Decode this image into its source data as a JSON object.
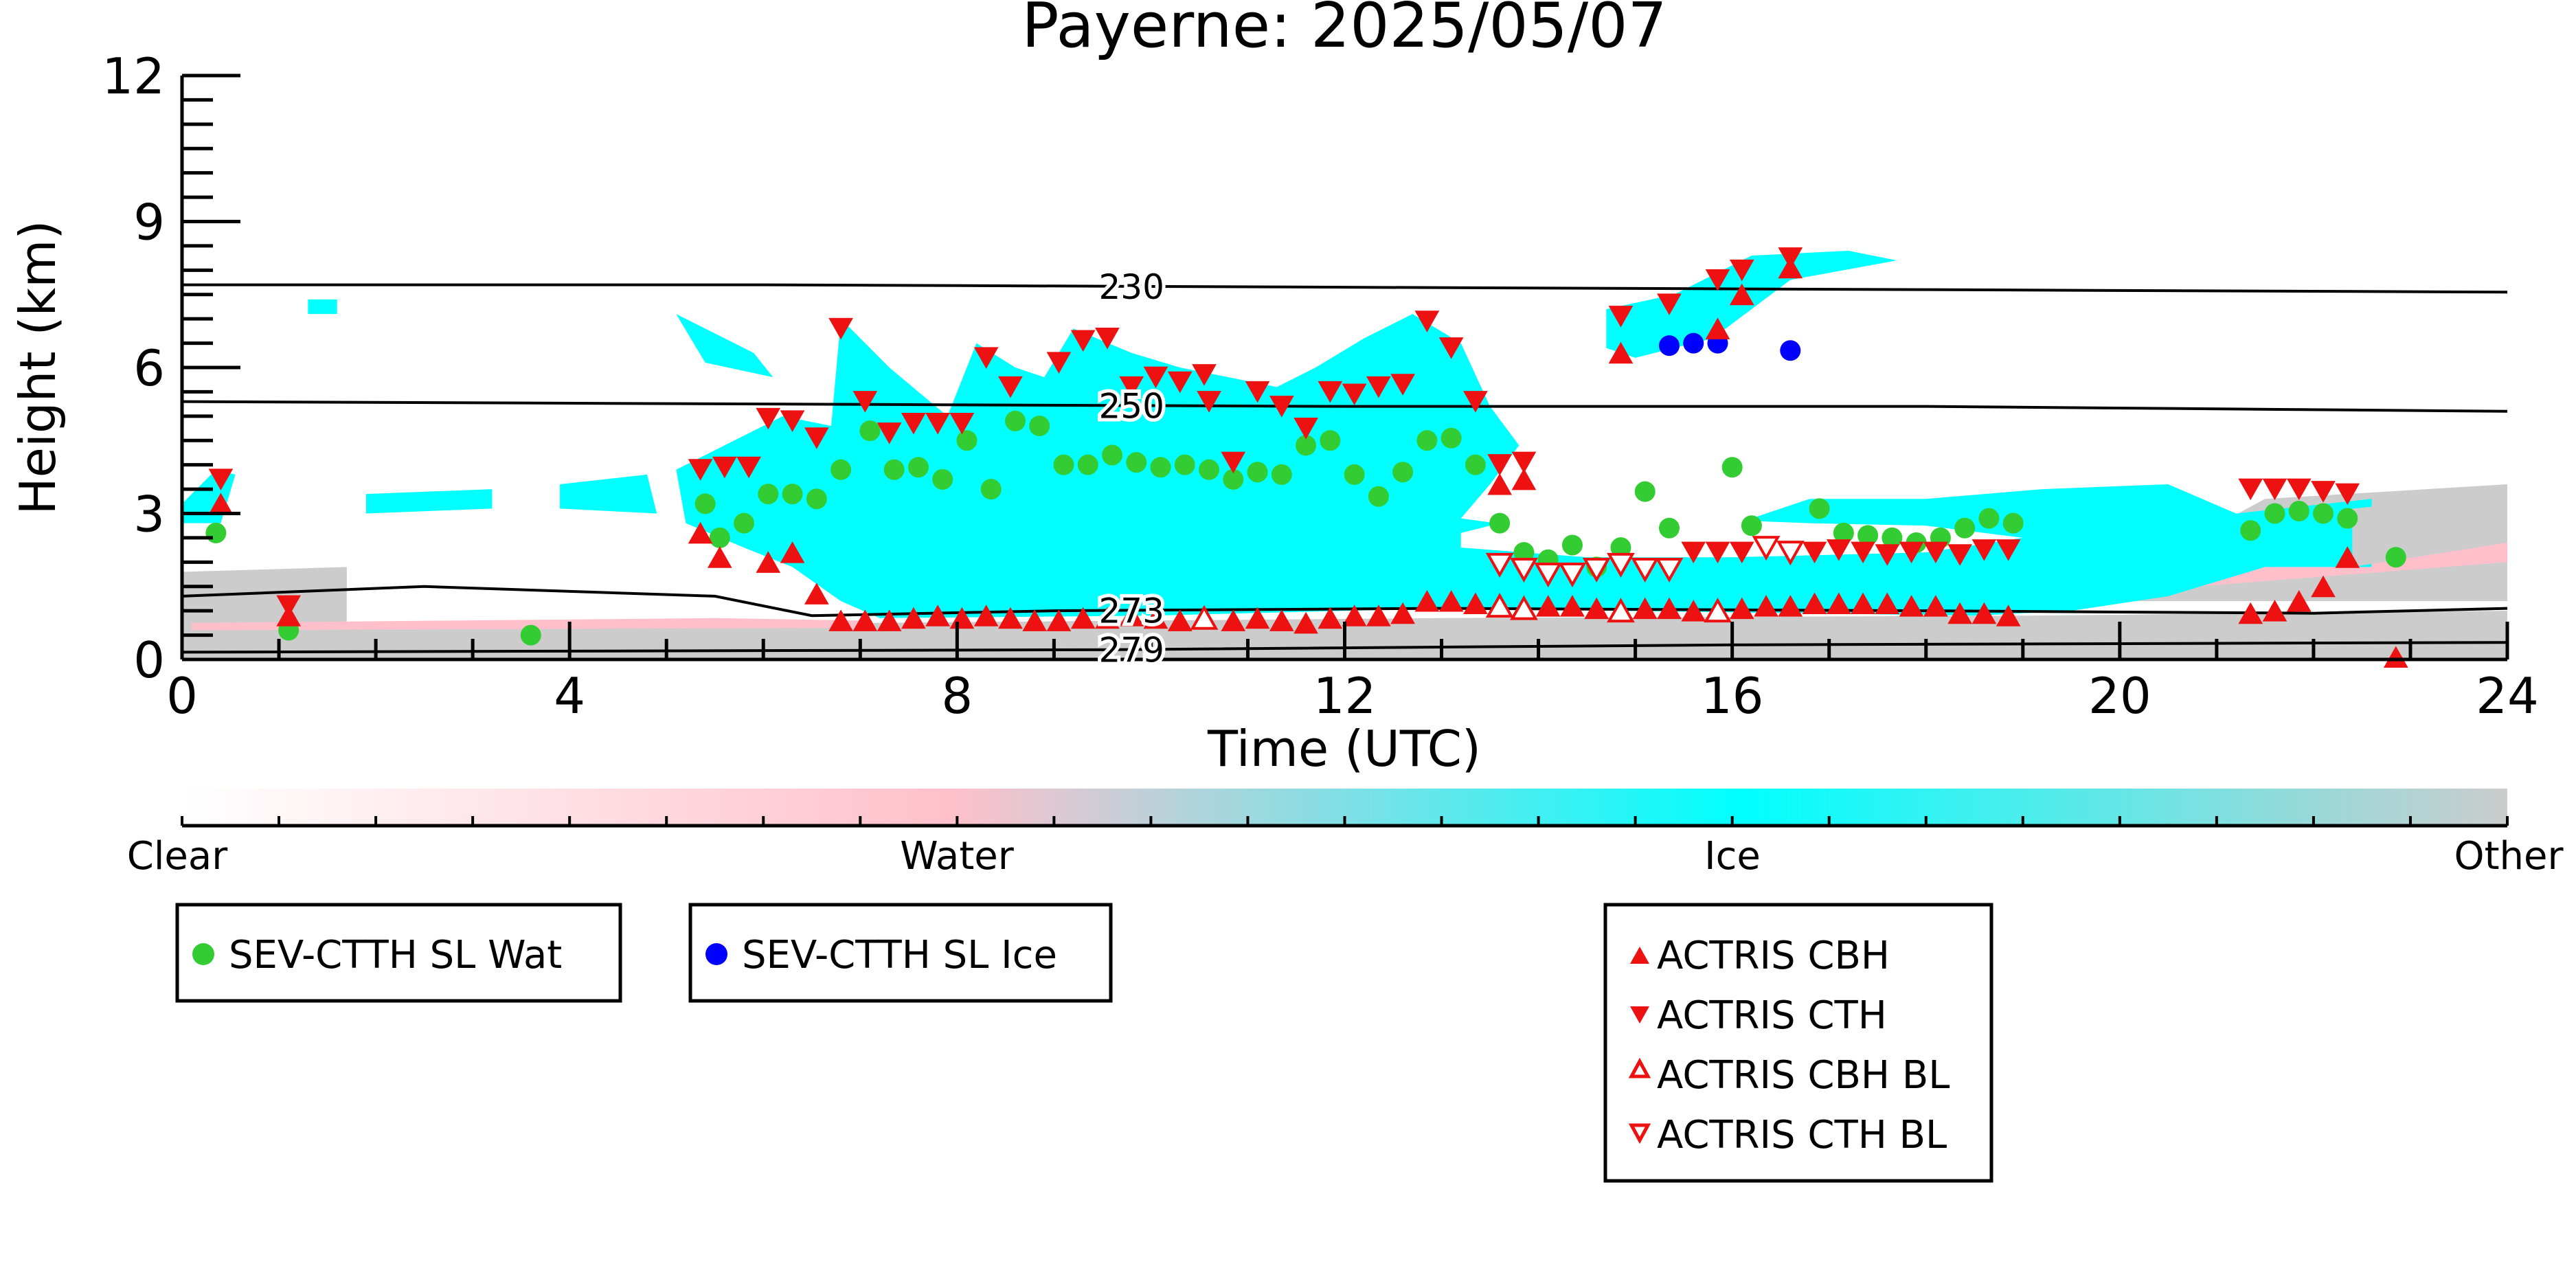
{
  "chart_data": {
    "type": "scatter",
    "title": "Payerne: 2025/05/07",
    "xlabel": "Time (UTC)",
    "ylabel": "Height (km)",
    "xlim": [
      0,
      24
    ],
    "ylim": [
      0,
      12
    ],
    "xticks": [
      0,
      4,
      8,
      12,
      16,
      20,
      24
    ],
    "yticks": [
      0,
      3,
      6,
      9,
      12
    ],
    "grid": false,
    "background_field": {
      "type": "cloud phase classification",
      "colorbar_labels": [
        "Clear",
        "Water",
        "Ice",
        "Other"
      ],
      "colors": {
        "Clear": "#ffffff",
        "Water": "#ffc0cb",
        "Ice": "#00ffff",
        "Other": "#cccccc"
      }
    },
    "contours": [
      {
        "label": "230",
        "points": [
          [
            0,
            7.7
          ],
          [
            6,
            7.7
          ],
          [
            12,
            7.65
          ],
          [
            18,
            7.6
          ],
          [
            24,
            7.55
          ]
        ]
      },
      {
        "label": "250",
        "points": [
          [
            0,
            5.3
          ],
          [
            6,
            5.25
          ],
          [
            12,
            5.2
          ],
          [
            18,
            5.2
          ],
          [
            24,
            5.1
          ]
        ]
      },
      {
        "label": "273",
        "points": [
          [
            0,
            1.3
          ],
          [
            2.5,
            1.5
          ],
          [
            5.5,
            1.3
          ],
          [
            6.5,
            0.9
          ],
          [
            9,
            1.0
          ],
          [
            13,
            1.05
          ],
          [
            18,
            1.0
          ],
          [
            22,
            0.95
          ],
          [
            24,
            1.05
          ]
        ]
      },
      {
        "label": "279",
        "points": [
          [
            0,
            0.15
          ],
          [
            9.5,
            0.2
          ],
          [
            16,
            0.3
          ],
          [
            24,
            0.35
          ]
        ]
      }
    ],
    "series": [
      {
        "name": "SEV-CTTH SL Wat",
        "marker": "circle",
        "color": "#33cc33",
        "points": [
          [
            0.35,
            2.6
          ],
          [
            1.1,
            0.6
          ],
          [
            3.6,
            0.5
          ],
          [
            5.4,
            3.2
          ],
          [
            5.55,
            2.5
          ],
          [
            5.8,
            2.8
          ],
          [
            6.05,
            3.4
          ],
          [
            6.3,
            3.4
          ],
          [
            6.55,
            3.3
          ],
          [
            6.8,
            3.9
          ],
          [
            7.1,
            4.7
          ],
          [
            7.35,
            3.9
          ],
          [
            7.6,
            3.95
          ],
          [
            7.85,
            3.7
          ],
          [
            8.1,
            4.5
          ],
          [
            8.35,
            3.5
          ],
          [
            8.6,
            4.9
          ],
          [
            8.85,
            4.8
          ],
          [
            9.1,
            4.0
          ],
          [
            9.35,
            4.0
          ],
          [
            9.6,
            4.2
          ],
          [
            9.85,
            4.05
          ],
          [
            10.1,
            3.95
          ],
          [
            10.35,
            4.0
          ],
          [
            10.6,
            3.9
          ],
          [
            10.85,
            3.7
          ],
          [
            11.1,
            3.85
          ],
          [
            11.35,
            3.8
          ],
          [
            11.6,
            4.4
          ],
          [
            11.85,
            4.5
          ],
          [
            12.1,
            3.8
          ],
          [
            12.35,
            3.35
          ],
          [
            12.6,
            3.85
          ],
          [
            12.85,
            4.5
          ],
          [
            13.1,
            4.55
          ],
          [
            13.35,
            4.0
          ],
          [
            13.6,
            2.8
          ],
          [
            13.85,
            2.2
          ],
          [
            14.1,
            2.05
          ],
          [
            14.35,
            2.35
          ],
          [
            14.6,
            1.9
          ],
          [
            14.85,
            2.3
          ],
          [
            15.1,
            3.45
          ],
          [
            15.35,
            2.7
          ],
          [
            16.0,
            3.95
          ],
          [
            16.2,
            2.75
          ],
          [
            16.9,
            3.1
          ],
          [
            17.15,
            2.6
          ],
          [
            17.4,
            2.55
          ],
          [
            17.65,
            2.5
          ],
          [
            17.9,
            2.4
          ],
          [
            18.15,
            2.5
          ],
          [
            18.4,
            2.7
          ],
          [
            18.65,
            2.9
          ],
          [
            18.9,
            2.8
          ],
          [
            21.35,
            2.65
          ],
          [
            21.6,
            3.0
          ],
          [
            21.85,
            3.05
          ],
          [
            22.1,
            3.0
          ],
          [
            22.35,
            2.9
          ],
          [
            22.85,
            2.1
          ]
        ]
      },
      {
        "name": "SEV-CTTH SL Ice",
        "marker": "circle",
        "color": "#0000ff",
        "points": [
          [
            15.35,
            6.45
          ],
          [
            15.6,
            6.5
          ],
          [
            15.85,
            6.5
          ],
          [
            16.6,
            6.35
          ]
        ]
      },
      {
        "name": "ACTRIS CBH",
        "marker": "triangle-up",
        "color": "#ee1111",
        "filled": true,
        "points": [
          [
            0.4,
            3.2
          ],
          [
            1.1,
            0.9
          ],
          [
            5.35,
            2.6
          ],
          [
            5.55,
            2.1
          ],
          [
            6.05,
            2.0
          ],
          [
            6.3,
            2.2
          ],
          [
            6.55,
            1.35
          ],
          [
            6.8,
            0.8
          ],
          [
            7.05,
            0.8
          ],
          [
            7.3,
            0.8
          ],
          [
            7.55,
            0.85
          ],
          [
            7.8,
            0.9
          ],
          [
            8.05,
            0.85
          ],
          [
            8.3,
            0.9
          ],
          [
            8.55,
            0.85
          ],
          [
            8.8,
            0.8
          ],
          [
            9.05,
            0.8
          ],
          [
            9.3,
            0.85
          ],
          [
            9.55,
            0.85
          ],
          [
            9.8,
            0.9
          ],
          [
            10.05,
            0.85
          ],
          [
            10.3,
            0.8
          ],
          [
            10.85,
            0.8
          ],
          [
            11.1,
            0.85
          ],
          [
            11.35,
            0.8
          ],
          [
            11.6,
            0.75
          ],
          [
            11.85,
            0.85
          ],
          [
            12.1,
            0.9
          ],
          [
            12.35,
            0.9
          ],
          [
            12.6,
            0.95
          ],
          [
            12.85,
            1.2
          ],
          [
            13.1,
            1.2
          ],
          [
            13.35,
            1.15
          ],
          [
            14.1,
            1.1
          ],
          [
            14.35,
            1.1
          ],
          [
            14.6,
            1.05
          ],
          [
            15.1,
            1.05
          ],
          [
            15.35,
            1.05
          ],
          [
            15.6,
            1.0
          ],
          [
            16.1,
            1.05
          ],
          [
            16.35,
            1.1
          ],
          [
            16.6,
            1.1
          ],
          [
            16.85,
            1.15
          ],
          [
            17.1,
            1.15
          ],
          [
            17.35,
            1.15
          ],
          [
            17.6,
            1.15
          ],
          [
            17.85,
            1.1
          ],
          [
            18.1,
            1.1
          ],
          [
            18.35,
            0.95
          ],
          [
            18.6,
            0.95
          ],
          [
            18.85,
            0.9
          ],
          [
            21.35,
            0.95
          ],
          [
            21.6,
            1.0
          ],
          [
            21.85,
            1.2
          ],
          [
            22.1,
            1.5
          ],
          [
            22.35,
            2.1
          ],
          [
            22.85,
            0.05
          ],
          [
            13.6,
            3.6
          ],
          [
            13.85,
            3.7
          ],
          [
            14.85,
            6.3
          ],
          [
            15.85,
            6.8
          ],
          [
            16.1,
            7.5
          ],
          [
            16.6,
            8.05
          ]
        ]
      },
      {
        "name": "ACTRIS CTH",
        "marker": "triangle-down",
        "color": "#ee1111",
        "filled": true,
        "points": [
          [
            0.4,
            3.7
          ],
          [
            1.1,
            1.1
          ],
          [
            5.35,
            3.9
          ],
          [
            5.6,
            3.95
          ],
          [
            5.85,
            3.95
          ],
          [
            6.05,
            4.95
          ],
          [
            6.3,
            4.9
          ],
          [
            6.55,
            4.55
          ],
          [
            6.8,
            6.8
          ],
          [
            7.05,
            5.3
          ],
          [
            7.3,
            4.65
          ],
          [
            7.55,
            4.85
          ],
          [
            7.8,
            4.85
          ],
          [
            8.05,
            4.85
          ],
          [
            8.3,
            6.2
          ],
          [
            8.55,
            5.6
          ],
          [
            9.05,
            6.1
          ],
          [
            9.3,
            6.55
          ],
          [
            9.55,
            6.6
          ],
          [
            9.8,
            5.6
          ],
          [
            10.05,
            5.8
          ],
          [
            10.3,
            5.7
          ],
          [
            10.55,
            5.85
          ],
          [
            10.6,
            5.3
          ],
          [
            10.85,
            4.05
          ],
          [
            11.1,
            5.5
          ],
          [
            11.35,
            5.2
          ],
          [
            11.6,
            4.75
          ],
          [
            11.85,
            5.5
          ],
          [
            12.1,
            5.45
          ],
          [
            12.35,
            5.6
          ],
          [
            12.6,
            5.65
          ],
          [
            12.85,
            6.95
          ],
          [
            13.1,
            6.4
          ],
          [
            13.35,
            5.3
          ],
          [
            13.6,
            4.0
          ],
          [
            13.85,
            4.05
          ],
          [
            14.85,
            7.05
          ],
          [
            15.35,
            7.3
          ],
          [
            15.85,
            7.8
          ],
          [
            16.1,
            8.0
          ],
          [
            16.6,
            8.25
          ],
          [
            21.35,
            3.5
          ],
          [
            21.6,
            3.5
          ],
          [
            21.85,
            3.5
          ],
          [
            22.1,
            3.45
          ],
          [
            22.35,
            3.4
          ],
          [
            16.1,
            2.2
          ],
          [
            16.35,
            2.3
          ],
          [
            16.6,
            2.2
          ],
          [
            16.85,
            2.2
          ],
          [
            17.1,
            2.25
          ],
          [
            17.35,
            2.2
          ],
          [
            17.6,
            2.15
          ],
          [
            17.85,
            2.2
          ],
          [
            18.1,
            2.2
          ],
          [
            18.35,
            2.15
          ],
          [
            18.6,
            2.25
          ],
          [
            18.85,
            2.25
          ],
          [
            15.6,
            2.2
          ],
          [
            15.85,
            2.2
          ]
        ]
      },
      {
        "name": "ACTRIS CBH BL",
        "marker": "triangle-up",
        "color": "#ee1111",
        "filled": false,
        "points": [
          [
            10.55,
            0.85
          ],
          [
            13.6,
            1.1
          ],
          [
            13.85,
            1.05
          ],
          [
            14.85,
            1.0
          ],
          [
            15.85,
            1.0
          ]
        ]
      },
      {
        "name": "ACTRIS CTH BL",
        "marker": "triangle-down",
        "color": "#ee1111",
        "filled": false,
        "points": [
          [
            13.6,
            1.95
          ],
          [
            13.85,
            1.85
          ],
          [
            14.1,
            1.75
          ],
          [
            14.35,
            1.75
          ],
          [
            14.6,
            1.85
          ],
          [
            14.85,
            1.95
          ],
          [
            15.1,
            1.85
          ],
          [
            15.35,
            1.85
          ],
          [
            16.35,
            2.3
          ],
          [
            16.6,
            2.2
          ]
        ]
      }
    ]
  }
}
